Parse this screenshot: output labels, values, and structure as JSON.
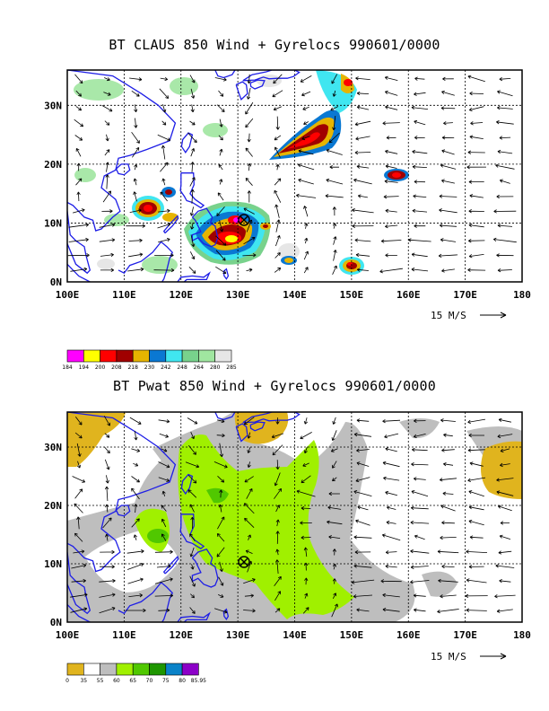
{
  "panels": [
    {
      "id": "claus",
      "title": "BT CLAUS 850 Wind + Gyrelocs 990601/0000",
      "x_ticks": [
        "100E",
        "110E",
        "120E",
        "130E",
        "140E",
        "150E",
        "160E",
        "170E",
        "180"
      ],
      "y_ticks": [
        "30N",
        "20N",
        "10N",
        "0N"
      ],
      "reference_vector": "15 M/S",
      "legend": {
        "labels": [
          "184",
          "194",
          "200",
          "208",
          "218",
          "230",
          "242",
          "248",
          "264",
          "280",
          "285"
        ],
        "colors": [
          "#ff00ff",
          "#ffff00",
          "#ff0000",
          "#a00000",
          "#e6b400",
          "#0a78d2",
          "#40e6f0",
          "#78d28c",
          "#a0e6a0",
          "#e6e6e6"
        ]
      }
    },
    {
      "id": "pwat",
      "title": "BT Pwat 850 Wind + Gyrelocs 990601/0000",
      "x_ticks": [
        "100E",
        "110E",
        "120E",
        "130E",
        "140E",
        "150E",
        "160E",
        "170E",
        "180"
      ],
      "y_ticks": [
        "30N",
        "20N",
        "10N",
        "0N"
      ],
      "reference_vector": "15 M/S",
      "legend": {
        "labels": [
          "0",
          "35",
          "55",
          "60",
          "65",
          "70",
          "75",
          "80",
          "85.95"
        ],
        "colors": [
          "#e0b41e",
          "#ffffff",
          "#bebebe",
          "#a0f000",
          "#50c800",
          "#1e9600",
          "#0a82c8",
          "#8c00c8"
        ]
      }
    }
  ],
  "map": {
    "lon_range": [
      100,
      180
    ],
    "lat_range": [
      0,
      36
    ],
    "gyre_location": {
      "lon": 131,
      "lat": 10
    }
  }
}
